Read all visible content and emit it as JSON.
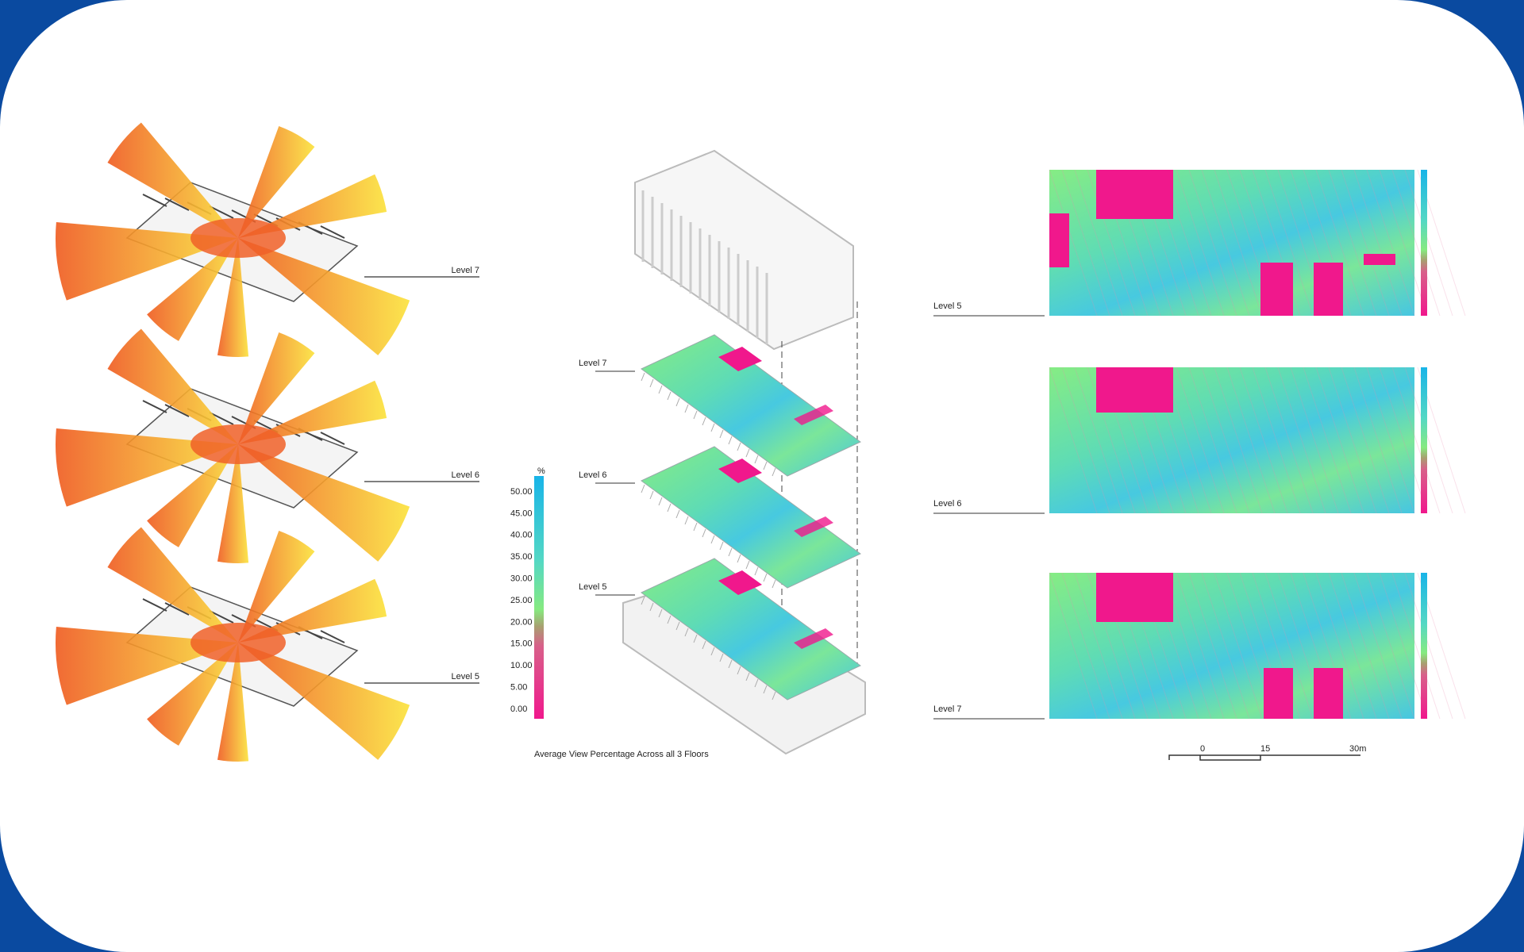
{
  "left_panel": {
    "levels": [
      "Level 7",
      "Level 6",
      "Level 5"
    ]
  },
  "center_panel": {
    "levels": [
      "Level 7",
      "Level 6",
      "Level 5"
    ],
    "legend": {
      "unit": "%",
      "ticks": [
        "50.00",
        "45.00",
        "40.00",
        "35.00",
        "30.00",
        "25.00",
        "20.00",
        "15.00",
        "10.00",
        "5.00",
        "0.00"
      ]
    },
    "caption": "Average View Percentage Across all 3 Floors"
  },
  "right_panel": {
    "levels": [
      "Level 5",
      "Level 6",
      "Level 7"
    ],
    "scale": {
      "labels": [
        "0",
        "15",
        "30m"
      ]
    }
  }
}
